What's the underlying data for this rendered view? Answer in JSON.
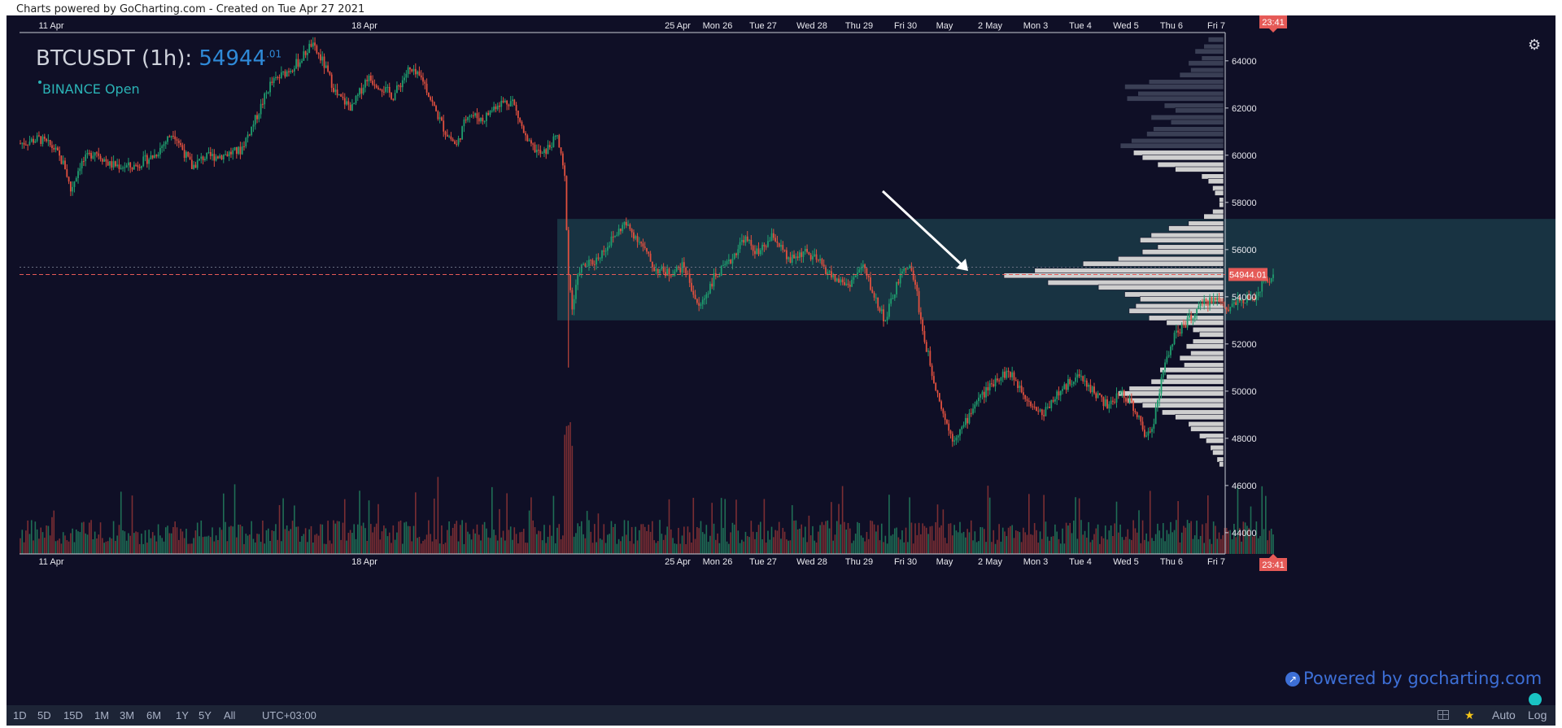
{
  "header_note": "Charts powered by GoCharting.com - Created on Tue Apr 27 2021",
  "title": {
    "symbol": "BTCUSDT (1h):",
    "price_main": "54944",
    "price_decimals": ".01"
  },
  "exchange_status": "BINANCE Open",
  "powered_by": "Powered by gocharting.com",
  "icons": {
    "settings": "gear-icon",
    "logo": "gocharting-logo-icon",
    "grid": "grid-icon",
    "favorite": "star-icon"
  },
  "colors": {
    "background": "#0f0f26",
    "bull": "#1f9d6e",
    "bear": "#e0503f",
    "vol_bull": "#1f6e55",
    "vol_bear": "#7b2e33",
    "profile_upper": "#3a3f55",
    "profile_lower": "#cfcfcf",
    "range_box": "#1a3a48",
    "price_line": "#e55a57",
    "arrow": "#ffffff"
  },
  "bottom_bar": {
    "timeframes": [
      "1D",
      "5D",
      "15D",
      "1M",
      "3M",
      "6M",
      "1Y",
      "5Y",
      "All"
    ],
    "timezone": "UTC+03:00",
    "auto": "Auto",
    "log": "Log"
  },
  "chart_data": {
    "type": "candlestick",
    "interval": "1h",
    "x_ticks": [
      "11 Apr",
      "18 Apr",
      "25 Apr",
      "Mon 26",
      "Tue 27",
      "Wed 28",
      "Thu 29",
      "Fri 30",
      "May",
      "2 May",
      "Mon 3",
      "Tue 4",
      "Wed 5",
      "Thu 6",
      "Fri 7"
    ],
    "y_ticks": [
      44000,
      46000,
      48000,
      50000,
      52000,
      54000,
      56000,
      58000,
      60000,
      62000,
      64000
    ],
    "ylim": [
      43100,
      65200
    ],
    "current_price": 54944.01,
    "current_price_label": "54944.01",
    "time_label": "23:41",
    "price_path": [
      [
        "2021-04-10 00:00",
        60500
      ],
      [
        "2021-04-10 10:00",
        60700
      ],
      [
        "2021-04-10 18:00",
        60300
      ],
      [
        "2021-04-11 00:00",
        59500
      ],
      [
        "2021-04-11 03:00",
        58500
      ],
      [
        "2021-04-11 08:00",
        59600
      ],
      [
        "2021-04-11 16:00",
        60200
      ],
      [
        "2021-04-12 00:00",
        59600
      ],
      [
        "2021-04-12 12:00",
        59500
      ],
      [
        "2021-04-13 00:00",
        60000
      ],
      [
        "2021-04-13 10:00",
        61000
      ],
      [
        "2021-04-13 20:00",
        59500
      ],
      [
        "2021-04-14 02:00",
        59900
      ],
      [
        "2021-04-14 12:00",
        60000
      ],
      [
        "2021-04-14 22:00",
        60200
      ],
      [
        "2021-04-15 06:00",
        61500
      ],
      [
        "2021-04-15 14:00",
        63000
      ],
      [
        "2021-04-15 22:00",
        63500
      ],
      [
        "2021-04-16 06:00",
        64000
      ],
      [
        "2021-04-16 12:00",
        64700
      ],
      [
        "2021-04-16 18:00",
        64000
      ],
      [
        "2021-04-17 02:00",
        62500
      ],
      [
        "2021-04-17 10:00",
        62000
      ],
      [
        "2021-04-17 18:00",
        63300
      ],
      [
        "2021-04-18 00:00",
        63000
      ],
      [
        "2021-04-18 08:00",
        62500
      ],
      [
        "2021-04-18 16:00",
        63600
      ],
      [
        "2021-04-19 00:00",
        63200
      ],
      [
        "2021-04-19 06:00",
        62000
      ],
      [
        "2021-04-19 12:00",
        61000
      ],
      [
        "2021-04-19 18:00",
        60400
      ],
      [
        "2021-04-20 00:00",
        61800
      ],
      [
        "2021-04-20 08:00",
        61500
      ],
      [
        "2021-04-20 16:00",
        62200
      ],
      [
        "2021-04-21 00:00",
        62300
      ],
      [
        "2021-04-21 08:00",
        60500
      ],
      [
        "2021-04-21 16:00",
        60000
      ],
      [
        "2021-04-22 00:00",
        60800
      ],
      [
        "2021-04-22 04:00",
        59000
      ],
      [
        "2021-04-22 06:00",
        55000
      ],
      [
        "2021-04-22 08:00",
        53500
      ],
      [
        "2021-04-22 12:00",
        55200
      ],
      [
        "2021-04-22 20:00",
        55500
      ],
      [
        "2021-04-23 04:00",
        56300
      ],
      [
        "2021-04-23 12:00",
        57100
      ],
      [
        "2021-04-23 20:00",
        56400
      ],
      [
        "2021-04-24 04:00",
        55200
      ],
      [
        "2021-04-24 12:00",
        55000
      ],
      [
        "2021-04-24 20:00",
        55300
      ],
      [
        "2021-04-25 04:00",
        53500
      ],
      [
        "2021-04-25 12:00",
        54800
      ],
      [
        "2021-04-25 20:00",
        55400
      ],
      [
        "2021-04-26 04:00",
        56500
      ],
      [
        "2021-04-26 12:00",
        55800
      ],
      [
        "2021-04-26 20:00",
        56600
      ],
      [
        "2021-04-27 04:00",
        55500
      ],
      [
        "2021-04-27 12:00",
        55900
      ],
      [
        "2021-04-27 20:00",
        55500
      ],
      [
        "2021-04-28 04:00",
        54800
      ],
      [
        "2021-04-28 12:00",
        54500
      ],
      [
        "2021-04-28 20:00",
        55300
      ],
      [
        "2021-04-29 02:00",
        54000
      ],
      [
        "2021-04-29 08:00",
        53000
      ],
      [
        "2021-04-29 14:00",
        54500
      ],
      [
        "2021-04-29 20:00",
        55400
      ],
      [
        "2021-04-30 00:00",
        54600
      ],
      [
        "2021-04-30 04:00",
        52500
      ],
      [
        "2021-04-30 10:00",
        50500
      ],
      [
        "2021-04-30 16:00",
        48800
      ],
      [
        "2021-04-30 20:00",
        48000
      ],
      [
        "2021-05-01 02:00",
        48500
      ],
      [
        "2021-05-01 08:00",
        49500
      ],
      [
        "2021-05-01 14:00",
        50000
      ],
      [
        "2021-05-01 20:00",
        50600
      ],
      [
        "2021-05-02 02:00",
        50800
      ],
      [
        "2021-05-02 08:00",
        50200
      ],
      [
        "2021-05-02 14:00",
        49500
      ],
      [
        "2021-05-02 20:00",
        49000
      ],
      [
        "2021-05-03 02:00",
        49700
      ],
      [
        "2021-05-03 08:00",
        50100
      ],
      [
        "2021-05-03 14:00",
        50700
      ],
      [
        "2021-05-03 20:00",
        50300
      ],
      [
        "2021-05-04 02:00",
        49800
      ],
      [
        "2021-05-04 08:00",
        49300
      ],
      [
        "2021-05-04 14:00",
        50000
      ],
      [
        "2021-05-04 20:00",
        49500
      ],
      [
        "2021-05-05 00:00",
        48800
      ],
      [
        "2021-05-05 04:00",
        48000
      ],
      [
        "2021-05-05 08:00",
        48800
      ],
      [
        "2021-05-05 12:00",
        50500
      ],
      [
        "2021-05-05 18:00",
        52200
      ],
      [
        "2021-05-06 00:00",
        52800
      ],
      [
        "2021-05-06 06:00",
        53300
      ],
      [
        "2021-05-06 12:00",
        53800
      ],
      [
        "2021-05-06 18:00",
        53900
      ],
      [
        "2021-05-07 00:00",
        53500
      ],
      [
        "2021-05-07 06:00",
        54000
      ],
      [
        "2021-05-07 12:00",
        53800
      ],
      [
        "2021-05-07 18:00",
        54500
      ],
      [
        "2021-05-08 00:00",
        54944.01
      ]
    ],
    "volume_profile": [
      [
        64900,
        0.07
      ],
      [
        64600,
        0.09
      ],
      [
        64400,
        0.13
      ],
      [
        64100,
        0.1
      ],
      [
        63900,
        0.16
      ],
      [
        63600,
        0.15
      ],
      [
        63400,
        0.2
      ],
      [
        63100,
        0.34
      ],
      [
        62900,
        0.45
      ],
      [
        62600,
        0.39
      ],
      [
        62400,
        0.44
      ],
      [
        62100,
        0.27
      ],
      [
        61900,
        0.22
      ],
      [
        61600,
        0.33
      ],
      [
        61400,
        0.24
      ],
      [
        61100,
        0.32
      ],
      [
        60900,
        0.35
      ],
      [
        60600,
        0.42
      ],
      [
        60400,
        0.47
      ],
      [
        60100,
        0.41
      ],
      [
        59900,
        0.37
      ],
      [
        59600,
        0.3
      ],
      [
        59400,
        0.22
      ],
      [
        59100,
        0.1
      ],
      [
        58900,
        0.07
      ],
      [
        58600,
        0.05
      ],
      [
        58400,
        0.04
      ],
      [
        58100,
        0.02
      ],
      [
        57900,
        0.02
      ],
      [
        57600,
        0.05
      ],
      [
        57400,
        0.09
      ],
      [
        57100,
        0.16
      ],
      [
        56900,
        0.25
      ],
      [
        56600,
        0.33
      ],
      [
        56400,
        0.38
      ],
      [
        56100,
        0.3
      ],
      [
        55900,
        0.37
      ],
      [
        55600,
        0.48
      ],
      [
        55400,
        0.64
      ],
      [
        55100,
        0.86
      ],
      [
        54900,
        1.0
      ],
      [
        54600,
        0.8
      ],
      [
        54400,
        0.57
      ],
      [
        54100,
        0.45
      ],
      [
        53900,
        0.38
      ],
      [
        53600,
        0.4
      ],
      [
        53400,
        0.43
      ],
      [
        53100,
        0.34
      ],
      [
        52900,
        0.26
      ],
      [
        52600,
        0.14
      ],
      [
        52400,
        0.11
      ],
      [
        52100,
        0.14
      ],
      [
        51900,
        0.17
      ],
      [
        51600,
        0.15
      ],
      [
        51400,
        0.2
      ],
      [
        51100,
        0.18
      ],
      [
        50900,
        0.29
      ],
      [
        50600,
        0.26
      ],
      [
        50400,
        0.33
      ],
      [
        50100,
        0.43
      ],
      [
        49900,
        0.48
      ],
      [
        49600,
        0.44
      ],
      [
        49400,
        0.37
      ],
      [
        49100,
        0.28
      ],
      [
        48900,
        0.22
      ],
      [
        48600,
        0.16
      ],
      [
        48400,
        0.15
      ],
      [
        48100,
        0.11
      ],
      [
        47900,
        0.08
      ],
      [
        47600,
        0.06
      ],
      [
        47400,
        0.05
      ],
      [
        47100,
        0.03
      ],
      [
        46900,
        0.02
      ]
    ],
    "range_box": {
      "from": "2021-04-22 00:00",
      "to": "2021-05-17 00:00",
      "y_low": 53000,
      "y_high": 57300
    }
  }
}
